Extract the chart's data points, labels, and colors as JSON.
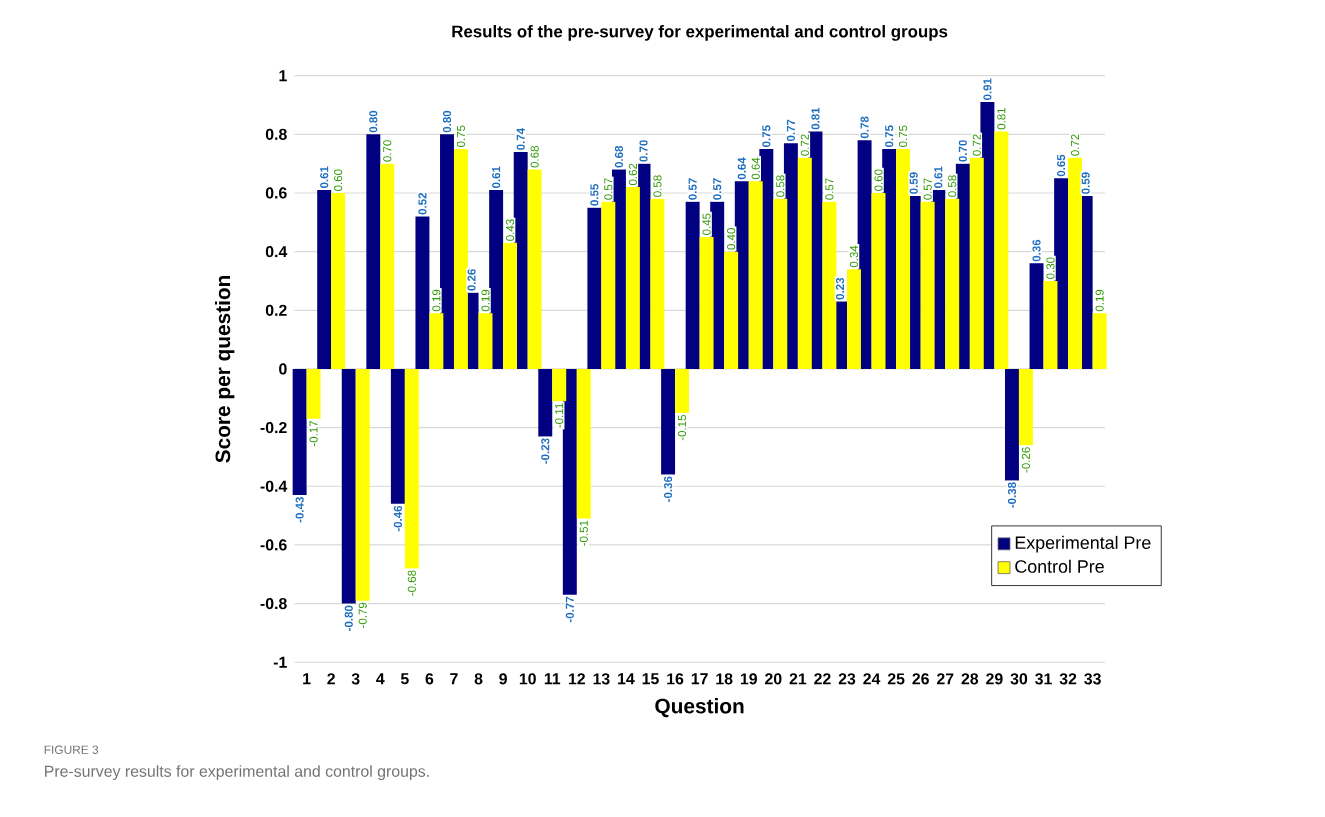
{
  "chart_data": {
    "type": "bar",
    "title": "Results of the pre-survey for experimental and control groups",
    "xlabel": "Question",
    "ylabel": "Score per question",
    "categories": [
      "1",
      "2",
      "3",
      "4",
      "5",
      "6",
      "7",
      "8",
      "9",
      "10",
      "11",
      "12",
      "13",
      "14",
      "15",
      "16",
      "17",
      "18",
      "19",
      "20",
      "21",
      "22",
      "23",
      "24",
      "25",
      "26",
      "27",
      "28",
      "29",
      "30",
      "31",
      "32",
      "33"
    ],
    "series": [
      {
        "name": "Experimental Pre",
        "color": "#000080",
        "values": [
          -0.43,
          0.61,
          -0.8,
          0.8,
          -0.46,
          0.52,
          0.8,
          0.26,
          0.61,
          0.74,
          -0.23,
          -0.77,
          0.55,
          0.68,
          0.7,
          -0.36,
          0.57,
          0.57,
          0.64,
          0.75,
          0.77,
          0.81,
          0.23,
          0.78,
          0.75,
          0.59,
          0.61,
          0.7,
          0.91,
          -0.38,
          0.36,
          0.65,
          0.59
        ],
        "value_labels": [
          "-0.43",
          "0.61",
          "-0.80",
          "0.80",
          "-0.46",
          "0.52",
          "0.80",
          "0.26",
          "0.61",
          "0.74",
          "-0.23",
          "-0.77",
          "0.55",
          "0.68",
          "0.70",
          "-0.36",
          "0.57",
          "0.57",
          "0.64",
          "0.75",
          "0.77",
          "0.81",
          "0.23",
          "0.78",
          "0.75",
          "0.59",
          "0.61",
          "0.70",
          "0.91",
          "-0.38",
          "0.36",
          "0.65",
          "0.59"
        ]
      },
      {
        "name": "Control Pre",
        "color": "#ffff00",
        "values": [
          -0.17,
          0.6,
          -0.79,
          0.7,
          -0.68,
          0.19,
          0.75,
          0.19,
          0.43,
          0.68,
          -0.11,
          -0.51,
          0.57,
          0.62,
          0.58,
          -0.15,
          0.45,
          0.4,
          0.64,
          0.58,
          0.72,
          0.57,
          0.34,
          0.6,
          0.75,
          0.57,
          0.58,
          0.72,
          0.81,
          -0.26,
          0.3,
          0.72,
          0.19
        ],
        "value_labels": [
          "-0.17",
          "0.60",
          "-0.79",
          "0.70",
          "-0.68",
          "0.19",
          "0.75",
          "0.19",
          "0.43",
          "0.68",
          "-0.11",
          "-0.51",
          "0.57",
          "0.62",
          "0.58",
          "-0.15",
          "0.45",
          "0.40",
          "0.64",
          "0.58",
          "0.72",
          "0.57",
          "0.34",
          "0.60",
          "0.75",
          "0.57",
          "0.58",
          "0.72",
          "0.81",
          "-0.26",
          "0.30",
          "0.72",
          "0.19"
        ]
      }
    ],
    "ylim": [
      -1,
      1
    ],
    "yticks": [
      -1,
      -0.8,
      -0.6,
      -0.4,
      -0.2,
      0,
      0.2,
      0.4,
      0.6,
      0.8,
      1
    ],
    "grid": "y",
    "legend": "bottom right",
    "annotations": [
      "FIGURE 3",
      "Pre-survey results for experimental and control groups."
    ]
  }
}
